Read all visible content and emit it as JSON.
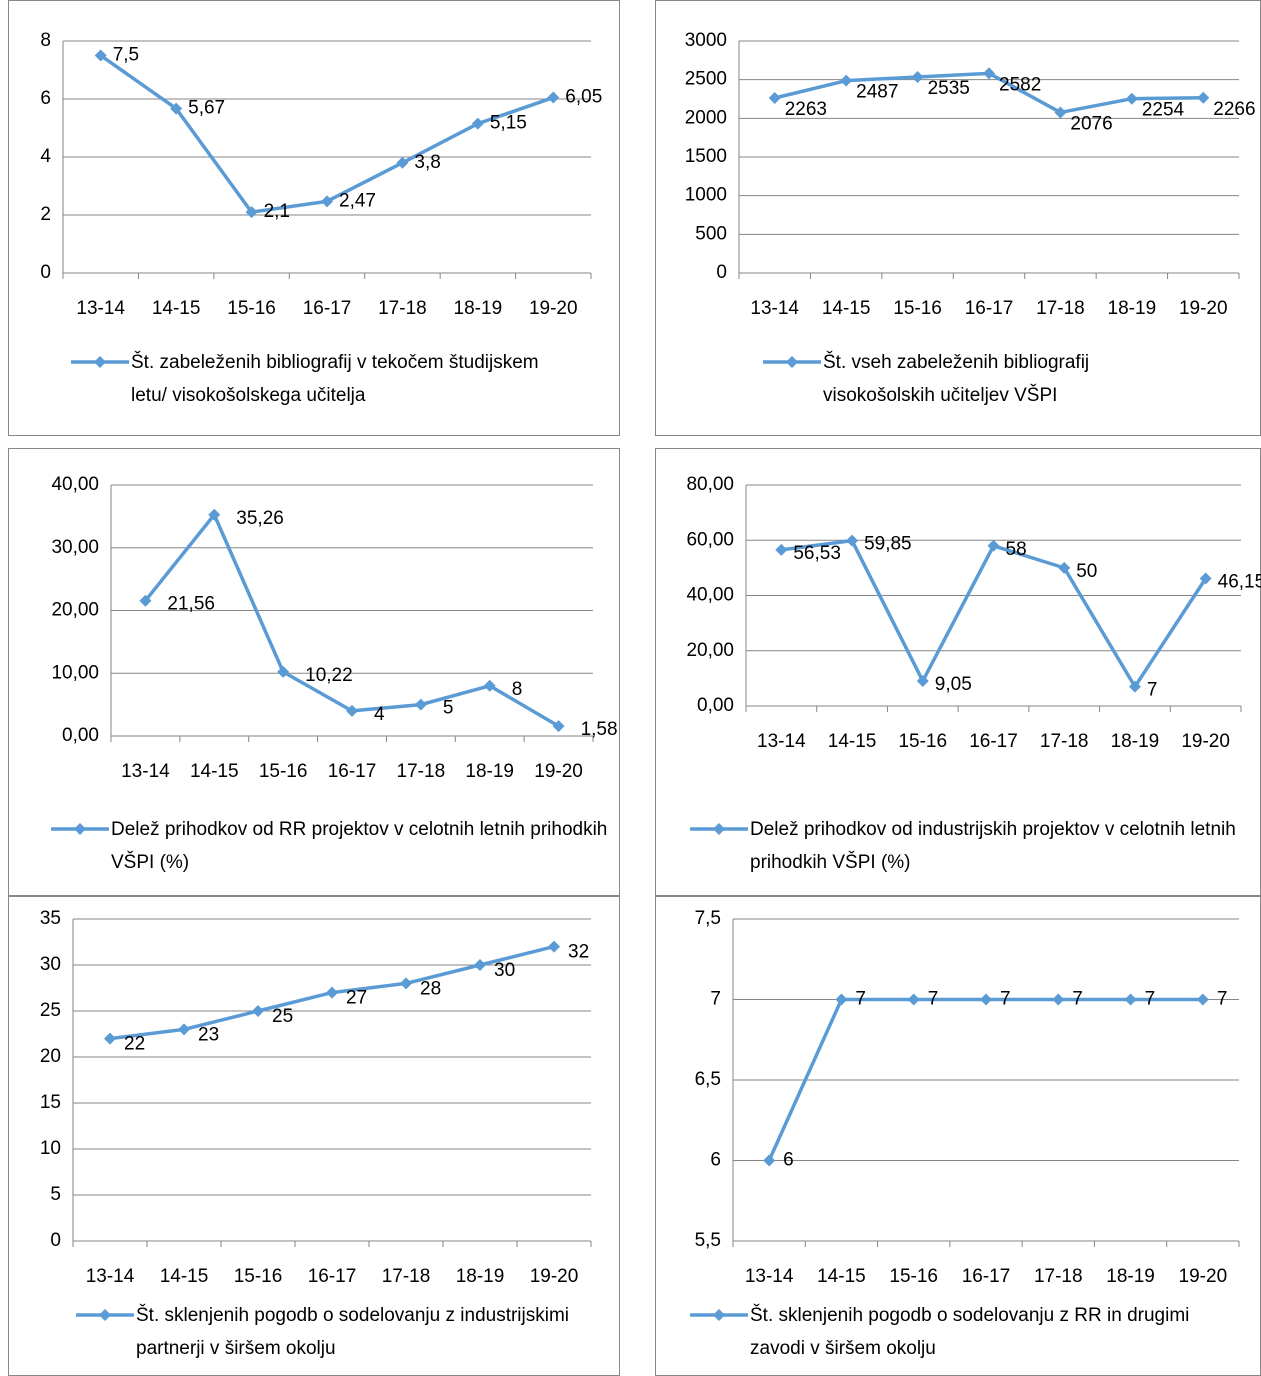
{
  "chart_data": [
    {
      "type": "line",
      "categories": [
        "13-14",
        "14-15",
        "15-16",
        "16-17",
        "17-18",
        "18-19",
        "19-20"
      ],
      "series": [
        {
          "name": "Št. zabeleženih bibliografij v tekočem študijskem letu/ visokošolskega učitelja",
          "color": "#5b9bd5",
          "values": [
            7.5,
            5.67,
            2.1,
            2.47,
            3.8,
            5.15,
            6.05
          ],
          "value_labels": [
            "7,5",
            "5,67",
            "2,1",
            "2,47",
            "3,8",
            "5,15",
            "6,05"
          ]
        }
      ],
      "ylim": [
        0,
        8
      ],
      "yticks": [
        0,
        2,
        4,
        6,
        8
      ],
      "grid": true,
      "legend": "bottom"
    },
    {
      "type": "line",
      "categories": [
        "13-14",
        "14-15",
        "15-16",
        "16-17",
        "17-18",
        "18-19",
        "19-20"
      ],
      "series": [
        {
          "name": "Št. vseh zabeleženih bibliografij visokošolskih učiteljev VŠPI",
          "color": "#5b9bd5",
          "values": [
            2263,
            2487,
            2535,
            2582,
            2076,
            2254,
            2266
          ]
        }
      ],
      "ylim": [
        0,
        3000
      ],
      "yticks": [
        0,
        500,
        1000,
        1500,
        2000,
        2500,
        3000
      ],
      "grid": true,
      "legend": "bottom"
    },
    {
      "type": "line",
      "categories": [
        "13-14",
        "14-15",
        "15-16",
        "16-17",
        "17-18",
        "18-19",
        "19-20"
      ],
      "series": [
        {
          "name": "Delež prihodkov od RR projektov v celotnih letnih prihodkih VŠPI (%)",
          "color": "#5b9bd5",
          "values": [
            21.56,
            35.26,
            10.22,
            4,
            5,
            8,
            1.58
          ],
          "value_labels": [
            "21,56",
            "35,26",
            "10,22",
            "4",
            "5",
            "8",
            "1,58"
          ]
        }
      ],
      "ylim": [
        0,
        40
      ],
      "yticks": [
        {
          "value": 0,
          "label": "0,00"
        },
        {
          "value": 10,
          "label": "10,00"
        },
        {
          "value": 20,
          "label": "20,00"
        },
        {
          "value": 30,
          "label": "30,00"
        },
        {
          "value": 40,
          "label": "40,00"
        }
      ],
      "grid": true,
      "legend": "bottom"
    },
    {
      "type": "line",
      "categories": [
        "13-14",
        "14-15",
        "15-16",
        "16-17",
        "17-18",
        "18-19",
        "19-20"
      ],
      "series": [
        {
          "name": "Delež prihodkov od industrijskih projektov v celotnih letnih prihodkih VŠPI (%)",
          "color": "#5b9bd5",
          "values": [
            56.53,
            59.85,
            9.05,
            58,
            50,
            7,
            46.15
          ],
          "value_labels": [
            "56,53",
            "59,85",
            "9,05",
            "58",
            "50",
            "7",
            "46,15"
          ]
        }
      ],
      "ylim": [
        0,
        80
      ],
      "yticks": [
        {
          "value": 0,
          "label": "0,00"
        },
        {
          "value": 20,
          "label": "20,00"
        },
        {
          "value": 40,
          "label": "40,00"
        },
        {
          "value": 60,
          "label": "60,00"
        },
        {
          "value": 80,
          "label": "80,00"
        }
      ],
      "grid": true,
      "legend": "bottom"
    },
    {
      "type": "line",
      "categories": [
        "13-14",
        "14-15",
        "15-16",
        "16-17",
        "17-18",
        "18-19",
        "19-20"
      ],
      "series": [
        {
          "name": "Št. sklenjenih pogodb  o sodelovanju z industrijskimi partnerji  v širšem okolju",
          "color": "#5b9bd5",
          "values": [
            22,
            23,
            25,
            27,
            28,
            30,
            32
          ]
        }
      ],
      "ylim": [
        0,
        35
      ],
      "yticks": [
        0,
        5,
        10,
        15,
        20,
        25,
        30,
        35
      ],
      "grid": true,
      "legend": "bottom"
    },
    {
      "type": "line",
      "categories": [
        "13-14",
        "14-15",
        "15-16",
        "16-17",
        "17-18",
        "18-19",
        "19-20"
      ],
      "series": [
        {
          "name": "Št. sklenjenih pogodb  o sodelovanju z RR in drugimi zavodi v širšem okolju",
          "color": "#5b9bd5",
          "values": [
            6,
            7,
            7,
            7,
            7,
            7,
            7
          ]
        }
      ],
      "ylim": [
        5.5,
        7.5
      ],
      "yticks": [
        {
          "value": 5.5,
          "label": "5,5"
        },
        6,
        {
          "value": 6.5,
          "label": "6,5"
        },
        7,
        {
          "value": 7.5,
          "label": "7,5"
        }
      ],
      "grid": true,
      "legend": "bottom"
    }
  ]
}
